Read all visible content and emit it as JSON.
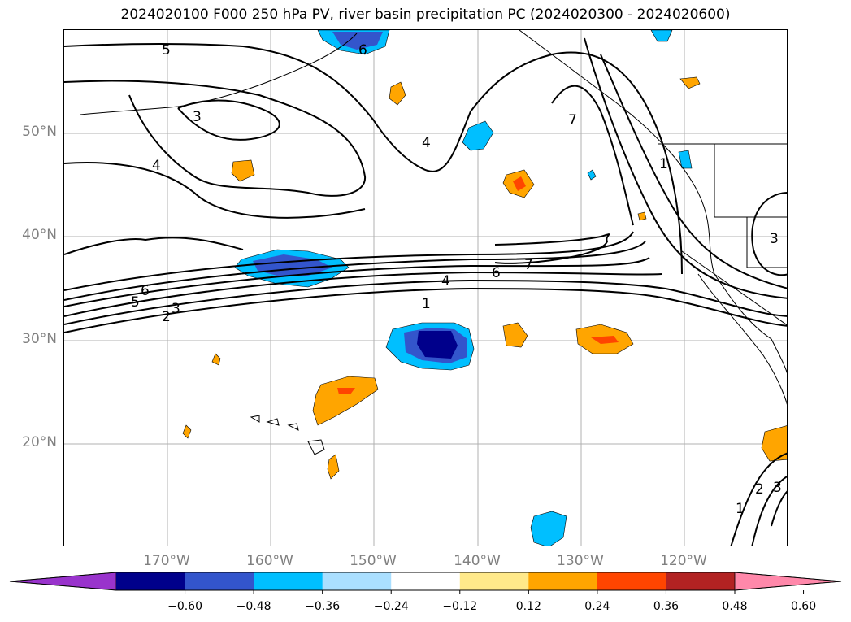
{
  "title": "2024020100 F000 250 hPa PV, river basin precipitation PC (2024020300 - 2024020600)",
  "lat_labels": [
    "50°N",
    "40°N",
    "30°N",
    "20°N"
  ],
  "lon_labels": [
    "170°W",
    "160°W",
    "150°W",
    "140°W",
    "130°W",
    "120°W"
  ],
  "contour_labels": [
    "1",
    "2",
    "3",
    "4",
    "5",
    "6",
    "7"
  ],
  "colorbar": {
    "ticks": [
      "−0.60",
      "−0.48",
      "−0.36",
      "−0.24",
      "−0.12",
      "0.12",
      "0.24",
      "0.36",
      "0.48",
      "0.60"
    ],
    "colors": [
      "#9933cc",
      "#00008b",
      "#3355cc",
      "#00bfff",
      "#aadfff",
      "#ffffff",
      "#ffe98a",
      "#ffa500",
      "#ff4500",
      "#b22222",
      "#ff88aa"
    ]
  }
}
